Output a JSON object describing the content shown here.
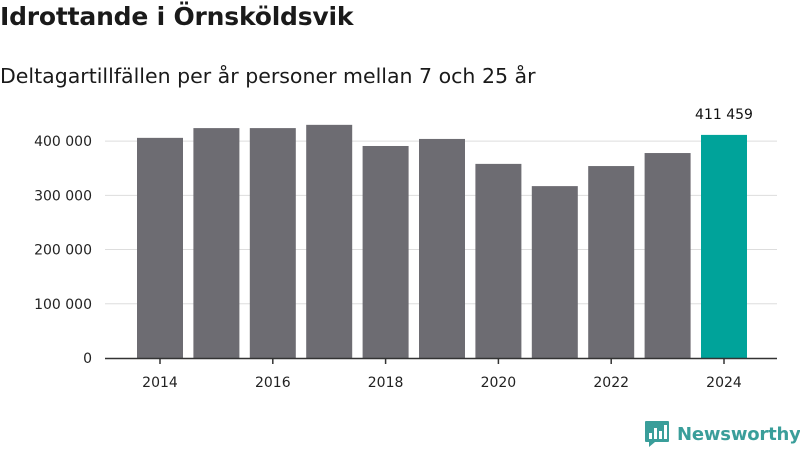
{
  "title": "Idrottande i Örnsköldsvik",
  "subtitle": "Deltagartillfällen per år personer mellan 7 och 25 år",
  "brand": {
    "name": "Newsworthy",
    "icon": "newsworthy-logo-icon",
    "color": "#3a9e9a"
  },
  "colors": {
    "bar": "#6d6c72",
    "highlight": "#00a39a",
    "grid": "#dddddd",
    "axis": "#333333"
  },
  "chart_data": {
    "type": "bar",
    "categories": [
      "2014",
      "2015",
      "2016",
      "2017",
      "2018",
      "2019",
      "2020",
      "2021",
      "2022",
      "2023",
      "2024"
    ],
    "values": [
      406000,
      424000,
      424000,
      430000,
      391000,
      404000,
      358000,
      317000,
      354000,
      378000,
      411459
    ],
    "highlight_index": 10,
    "value_label": "411 459",
    "x_tick_labels": [
      "2014",
      "2016",
      "2018",
      "2020",
      "2022",
      "2024"
    ],
    "y_tick_values": [
      0,
      100000,
      200000,
      300000,
      400000
    ],
    "y_tick_labels": [
      "0",
      "100 000",
      "200 000",
      "300 000",
      "400 000"
    ],
    "ylim": [
      0,
      450000
    ],
    "xlabel": "",
    "ylabel": "",
    "grid": true
  }
}
